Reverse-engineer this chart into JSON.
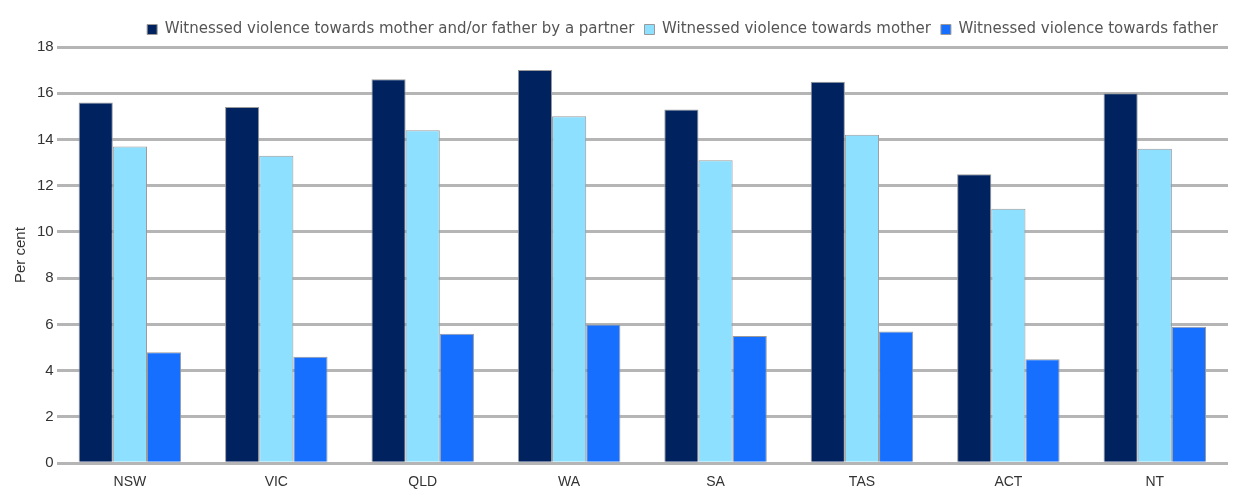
{
  "chart_data": {
    "type": "bar",
    "ylabel": "Per cent",
    "categories": [
      "NSW",
      "VIC",
      "QLD",
      "WA",
      "SA",
      "TAS",
      "ACT",
      "NT"
    ],
    "series": [
      {
        "name": "Witnessed violence towards mother and/or father by a partner",
        "color": "#002360",
        "values": [
          15.6,
          15.4,
          16.6,
          17.0,
          15.3,
          16.5,
          12.5,
          16.0
        ]
      },
      {
        "name": "Witnessed violence towards mother",
        "color": "#8de0ff",
        "values": [
          13.7,
          13.3,
          14.4,
          15.0,
          13.1,
          14.2,
          11.0,
          13.6
        ]
      },
      {
        "name": "Witnessed violence towards father",
        "color": "#166ffe",
        "values": [
          4.8,
          4.6,
          5.6,
          6.0,
          5.5,
          5.7,
          4.5,
          5.9
        ]
      }
    ],
    "ylim": [
      0,
      18
    ],
    "yticks": [
      0,
      2,
      4,
      6,
      8,
      10,
      12,
      14,
      16,
      18
    ],
    "grid": "y",
    "legend": "top right"
  }
}
